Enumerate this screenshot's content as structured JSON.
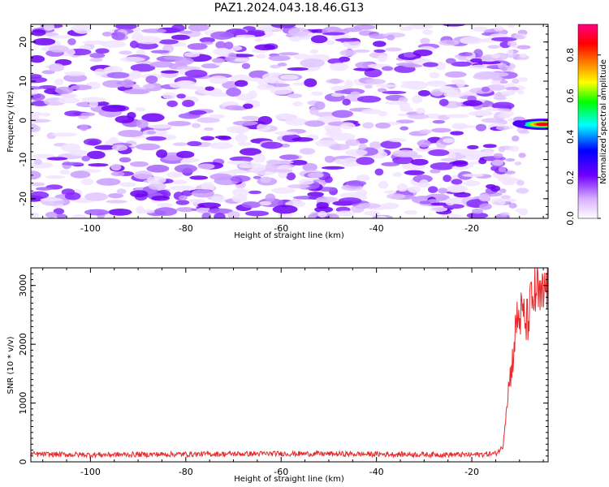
{
  "title": "PAZ1.2024.043.18.46.G13",
  "chart_data": [
    {
      "type": "heatmap",
      "xlabel": "Height of straight line (km)",
      "ylabel": "Frequency (Hz)",
      "xlim": [
        -112.5,
        -4
      ],
      "ylim": [
        -25,
        24.5
      ],
      "xticks": [
        -100,
        -80,
        -60,
        -40,
        -20
      ],
      "yticks": [
        -20,
        -10,
        0,
        10,
        20
      ],
      "colorbar": {
        "label": "Normalized spectral amplitude",
        "range": [
          0,
          0.95
        ],
        "ticks": [
          0.0,
          0.2,
          0.4,
          0.6,
          0.8
        ],
        "colors": [
          "#ffffff",
          "#b060ff",
          "#7000ff",
          "#0000ff",
          "#00ffff",
          "#00ff00",
          "#ffff00",
          "#ff8000",
          "#ff0000",
          "#ff0080"
        ]
      },
      "peak": {
        "x": -6,
        "y": -1,
        "value": 0.95
      },
      "background_level": 0.15
    },
    {
      "type": "line",
      "xlabel": "Height of straight line (km)",
      "ylabel": "SNR (10 * v/v)",
      "xlim": [
        -112.5,
        -4
      ],
      "ylim": [
        0,
        3300
      ],
      "xticks": [
        -100,
        -80,
        -60,
        -40,
        -20
      ],
      "yticks": [
        0,
        1000,
        2000,
        3000
      ],
      "series": [
        {
          "color": "#e8282b",
          "x": [
            -112.5,
            -100,
            -80,
            -60,
            -40,
            -20,
            -15,
            -13.5,
            -12.5,
            -11.5,
            -10.5,
            -9.5,
            -8.5,
            -7.5,
            -6.5,
            -5.5,
            -4.5,
            -4
          ],
          "y": [
            130,
            120,
            130,
            140,
            130,
            120,
            140,
            250,
            1150,
            1700,
            2450,
            2500,
            2350,
            2700,
            2900,
            2700,
            2950,
            3100
          ]
        }
      ]
    }
  ]
}
